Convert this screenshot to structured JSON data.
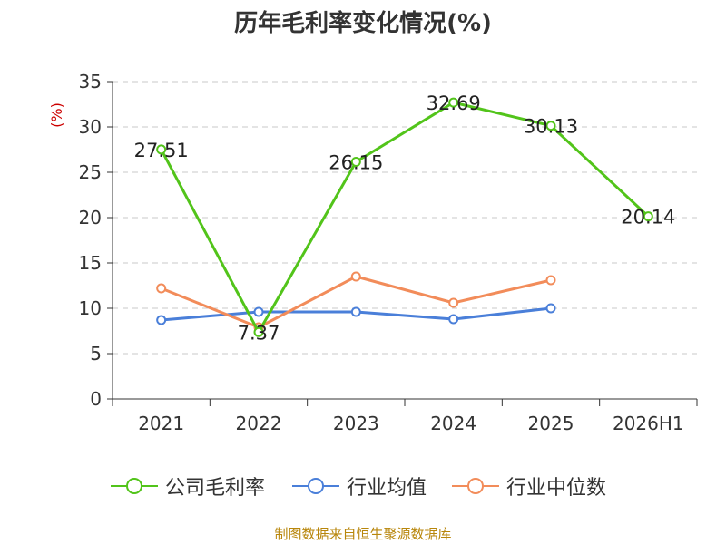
{
  "chart_data": {
    "type": "line",
    "title": "历年毛利率变化情况(%)",
    "ylabel": "(%)",
    "xlabel": "",
    "categories": [
      "2021",
      "2022",
      "2023",
      "2024",
      "2025",
      "2026H1"
    ],
    "ylim": [
      0,
      35
    ],
    "yticks": [
      "0",
      "5",
      "10",
      "15",
      "20",
      "25",
      "30",
      "35"
    ],
    "grid": true,
    "legend_position": "bottom",
    "series": [
      {
        "name": "公司毛利率",
        "color": "#52c41a",
        "values": [
          27.51,
          7.37,
          26.15,
          32.69,
          30.13,
          20.14
        ],
        "labels": [
          "27.51",
          "7.37",
          "26.15",
          "32.69",
          "30.13",
          "20.14"
        ]
      },
      {
        "name": "行业均值",
        "color": "#4a7fd9",
        "values": [
          8.7,
          9.6,
          9.6,
          8.8,
          10.0,
          null
        ]
      },
      {
        "name": "行业中位数",
        "color": "#f28c5a",
        "values": [
          12.2,
          7.9,
          13.5,
          10.6,
          13.1,
          null
        ]
      }
    ]
  },
  "source": "制图数据来自恒生聚源数据库"
}
